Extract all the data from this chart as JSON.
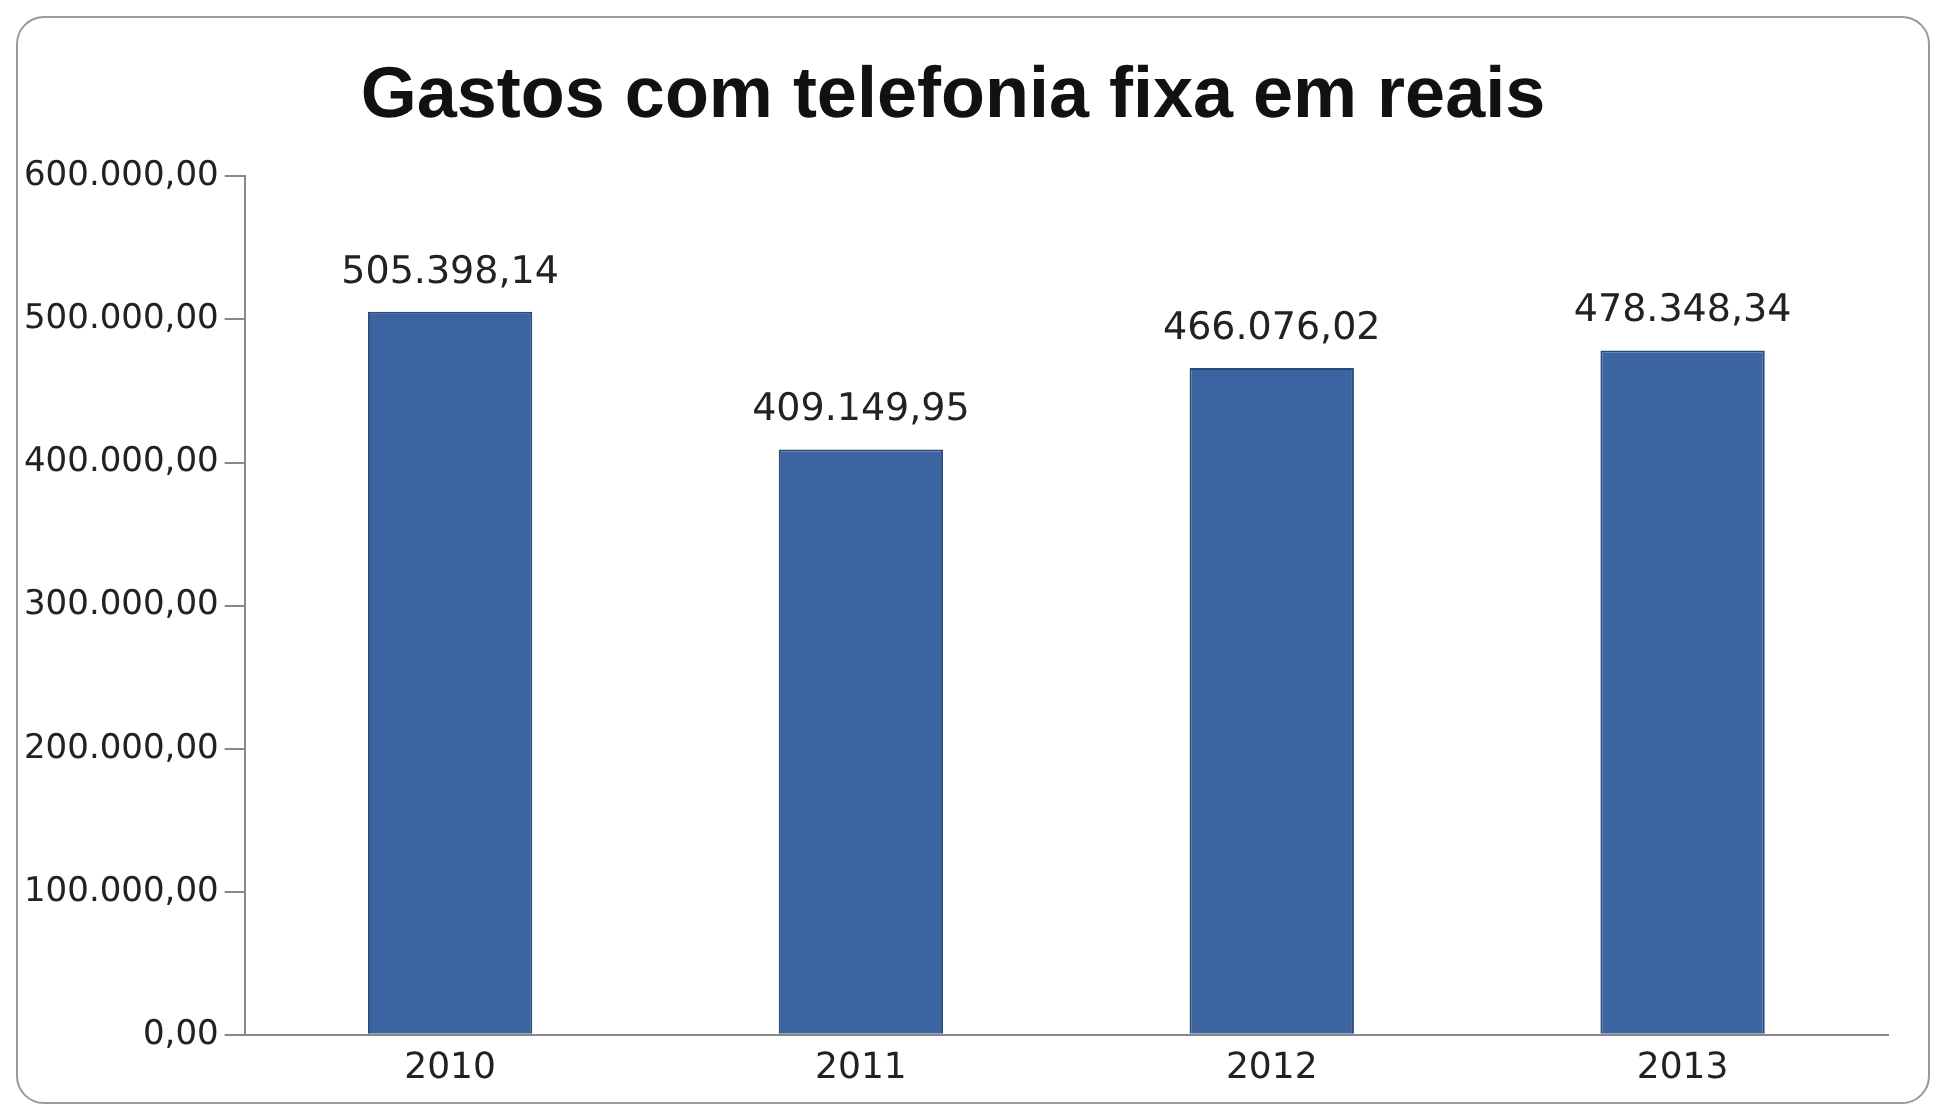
{
  "chart_data": {
    "type": "bar",
    "title": "Gastos com telefonia fixa em reais",
    "categories": [
      "2010",
      "2011",
      "2012",
      "2013"
    ],
    "values": [
      505398.14,
      409149.95,
      466076.02,
      478348.34
    ],
    "value_labels": [
      "505.398,14",
      "409.149,95",
      "466.076,02",
      "478.348,34"
    ],
    "color": "#3b64a0",
    "ylim": [
      0,
      600000
    ],
    "yticks": [
      {
        "value": 0,
        "label": "0,00"
      },
      {
        "value": 100000,
        "label": "100.000,00"
      },
      {
        "value": 200000,
        "label": "200.000,00"
      },
      {
        "value": 300000,
        "label": "300.000,00"
      },
      {
        "value": 400000,
        "label": "400.000,00"
      },
      {
        "value": 500000,
        "label": "500.000,00"
      },
      {
        "value": 600000,
        "label": "600.000,00"
      }
    ],
    "grid": false,
    "legend": false
  }
}
